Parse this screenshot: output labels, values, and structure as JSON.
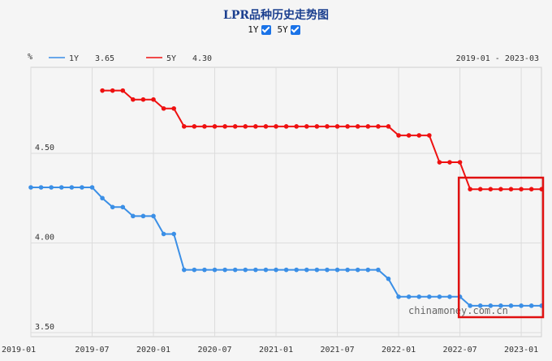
{
  "page": {
    "title": "LPR品种历史走势图",
    "toggle_1y_label": "1Y",
    "toggle_5y_label": "5Y"
  },
  "chart_data": {
    "type": "line",
    "title": "LPR品种历史走势图",
    "yunit": "%",
    "date_range": "2019-01 - 2023-03",
    "ylim": [
      3.5,
      4.9
    ],
    "yticks": [
      "4.50",
      "4.00",
      "3.50"
    ],
    "xticks": [
      "2019-01",
      "2019-07",
      "2020-01",
      "2020-07",
      "2021-01",
      "2021-07",
      "2022-01",
      "2022-07",
      "2023-01"
    ],
    "grid": true,
    "watermark": "chinamoney.com.cn",
    "series": [
      {
        "name": "1Y",
        "latest_value": "3.65",
        "color": "#3b8fe6",
        "x": [
          "2019-01",
          "2019-02",
          "2019-03",
          "2019-04",
          "2019-05",
          "2019-06",
          "2019-07",
          "2019-08",
          "2019-09",
          "2019-10",
          "2019-11",
          "2019-12",
          "2020-01",
          "2020-02",
          "2020-03",
          "2020-04",
          "2020-05",
          "2020-06",
          "2020-07",
          "2020-08",
          "2020-09",
          "2020-10",
          "2020-11",
          "2020-12",
          "2021-01",
          "2021-02",
          "2021-03",
          "2021-04",
          "2021-05",
          "2021-06",
          "2021-07",
          "2021-08",
          "2021-09",
          "2021-10",
          "2021-11",
          "2021-12",
          "2022-01",
          "2022-02",
          "2022-03",
          "2022-04",
          "2022-05",
          "2022-06",
          "2022-07",
          "2022-08",
          "2022-09",
          "2022-10",
          "2022-11",
          "2022-12",
          "2023-01",
          "2023-02",
          "2023-03"
        ],
        "values": [
          4.31,
          4.31,
          4.31,
          4.31,
          4.31,
          4.31,
          4.31,
          4.25,
          4.2,
          4.2,
          4.15,
          4.15,
          4.15,
          4.05,
          4.05,
          3.85,
          3.85,
          3.85,
          3.85,
          3.85,
          3.85,
          3.85,
          3.85,
          3.85,
          3.85,
          3.85,
          3.85,
          3.85,
          3.85,
          3.85,
          3.85,
          3.85,
          3.85,
          3.85,
          3.85,
          3.8,
          3.7,
          3.7,
          3.7,
          3.7,
          3.7,
          3.7,
          3.7,
          3.65,
          3.65,
          3.65,
          3.65,
          3.65,
          3.65,
          3.65,
          3.65
        ]
      },
      {
        "name": "5Y",
        "latest_value": "4.30",
        "color": "#ee1111",
        "x": [
          "2019-08",
          "2019-09",
          "2019-10",
          "2019-11",
          "2019-12",
          "2020-01",
          "2020-02",
          "2020-03",
          "2020-04",
          "2020-05",
          "2020-06",
          "2020-07",
          "2020-08",
          "2020-09",
          "2020-10",
          "2020-11",
          "2020-12",
          "2021-01",
          "2021-02",
          "2021-03",
          "2021-04",
          "2021-05",
          "2021-06",
          "2021-07",
          "2021-08",
          "2021-09",
          "2021-10",
          "2021-11",
          "2021-12",
          "2022-01",
          "2022-02",
          "2022-03",
          "2022-04",
          "2022-05",
          "2022-06",
          "2022-07",
          "2022-08",
          "2022-09",
          "2022-10",
          "2022-11",
          "2022-12",
          "2023-01",
          "2023-02",
          "2023-03"
        ],
        "values": [
          4.85,
          4.85,
          4.85,
          4.8,
          4.8,
          4.8,
          4.75,
          4.75,
          4.65,
          4.65,
          4.65,
          4.65,
          4.65,
          4.65,
          4.65,
          4.65,
          4.65,
          4.65,
          4.65,
          4.65,
          4.65,
          4.65,
          4.65,
          4.65,
          4.65,
          4.65,
          4.65,
          4.65,
          4.65,
          4.6,
          4.6,
          4.6,
          4.6,
          4.45,
          4.45,
          4.45,
          4.3,
          4.3,
          4.3,
          4.3,
          4.3,
          4.3,
          4.3,
          4.3
        ]
      }
    ],
    "highlight": {
      "from": "2022-08",
      "to": "2023-03",
      "color": "#e01010"
    }
  }
}
